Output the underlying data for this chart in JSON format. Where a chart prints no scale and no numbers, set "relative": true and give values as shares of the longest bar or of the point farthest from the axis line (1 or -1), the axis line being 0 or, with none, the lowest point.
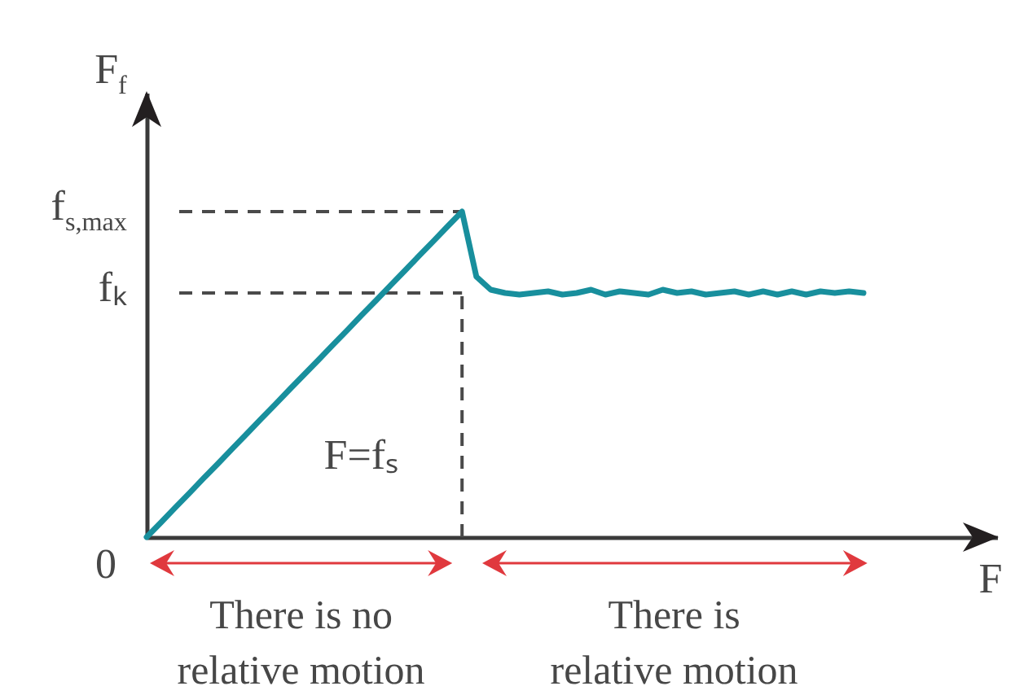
{
  "chart_data": {
    "type": "line",
    "relative": true,
    "xlabel": "F",
    "ylabel": "F$_{f}$",
    "categories": [
      null,
      null,
      null,
      null,
      null,
      null,
      null,
      null,
      null,
      null,
      null,
      null,
      null,
      null,
      null,
      null,
      null,
      null,
      null,
      null,
      null,
      null,
      null,
      null,
      null,
      null,
      null,
      null,
      null,
      null,
      null,
      null,
      null,
      null,
      null,
      null,
      null,
      null,
      null,
      null,
      null,
      null,
      null,
      null,
      null,
      null,
      null,
      null,
      null,
      null,
      null
    ],
    "color": "#188f9d",
    "values": [
      0,
      0.045,
      0.091,
      0.136,
      0.182,
      0.227,
      0.273,
      0.318,
      0.364,
      0.409,
      0.455,
      0.5,
      0.545,
      0.591,
      0.636,
      0.682,
      0.727,
      0.773,
      0.818,
      0.864,
      0.909,
      0.955,
      1,
      0.8,
      0.76,
      0.75,
      0.745,
      0.75,
      0.755,
      0.745,
      0.75,
      0.76,
      0.745,
      0.755,
      0.75,
      0.745,
      0.76,
      0.75,
      0.755,
      0.745,
      0.75,
      0.755,
      0.745,
      0.755,
      0.745,
      0.755,
      0.745,
      0.755,
      0.75,
      0.755,
      0.75
    ],
    "ref_lines": [
      {
        "axis": "y",
        "value": 1,
        "label": "f$_{s,max}$",
        "color": "#4a4a4a",
        "line_style": "dashed"
      },
      {
        "axis": "y",
        "value": 0.75,
        "label": "fₖ",
        "color": "#4a4a4a",
        "line_style": "dashed"
      }
    ],
    "annotations": [
      "0",
      "F=fₛ",
      "There is no relative motion",
      "There is relative motion"
    ]
  }
}
